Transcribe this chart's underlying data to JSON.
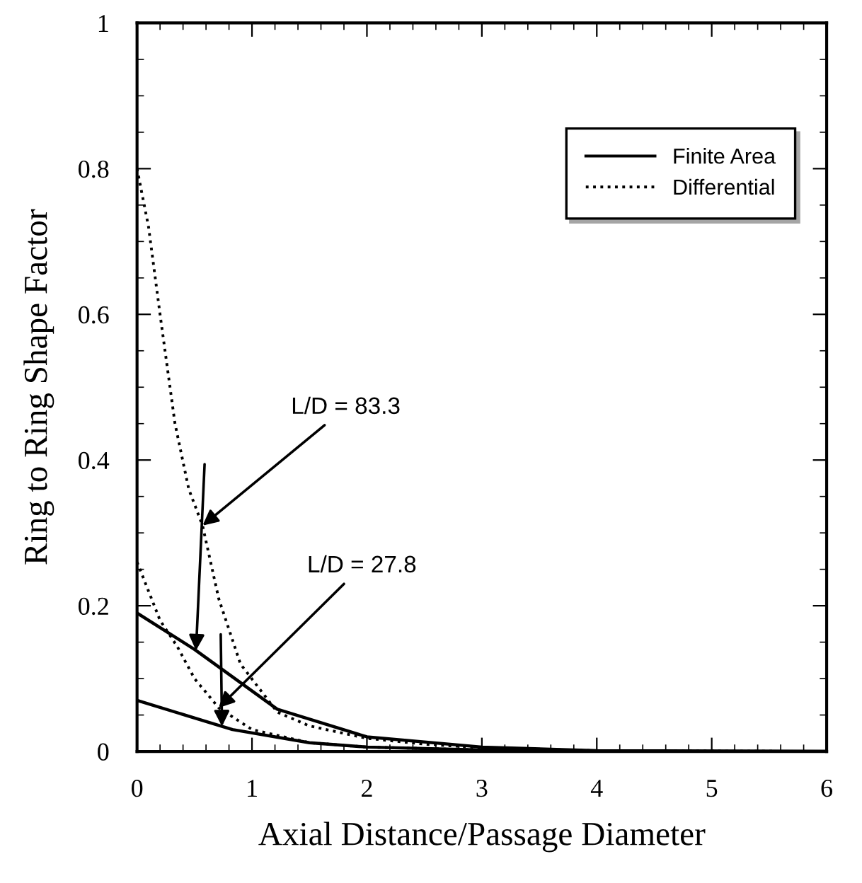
{
  "chart_data": {
    "type": "line",
    "xlabel": "Axial Distance/Passage Diameter",
    "ylabel": "Ring to Ring Shape Factor",
    "xlim": [
      0,
      6
    ],
    "xticks": [
      0,
      1,
      2,
      3,
      4,
      5,
      6
    ],
    "ylim": [
      0,
      1
    ],
    "yticks": [
      0,
      0.2,
      0.4,
      0.6,
      0.8,
      1
    ],
    "legend": "top right",
    "grid": false,
    "marker": "none",
    "series": [
      {
        "name": "Finite Area",
        "color": "#000000",
        "line_style": "solid",
        "x": [
          0,
          0.5,
          1.22,
          2,
          3,
          4,
          6
        ],
        "values": [
          0.19,
          0.14,
          0.058,
          0.02,
          0.006,
          0.001,
          0
        ]
      },
      {
        "color": "#000000",
        "line_style": "solid",
        "x": [
          0,
          0.83,
          1.5,
          2,
          3,
          4,
          6
        ],
        "values": [
          0.07,
          0.03,
          0.012,
          0.006,
          0.002,
          0,
          0
        ]
      },
      {
        "name": "Differential",
        "color": "#000000",
        "line_style": "dotted",
        "x": [
          0,
          0.1,
          0.2,
          0.33,
          0.45,
          0.57,
          0.71,
          0.9,
          1.22,
          1.5,
          2,
          2.5,
          3,
          4,
          6
        ],
        "values": [
          0.8,
          0.72,
          0.6,
          0.45,
          0.36,
          0.31,
          0.21,
          0.12,
          0.054,
          0.035,
          0.018,
          0.01,
          0.005,
          0.001,
          0
        ]
      },
      {
        "color": "#000000",
        "line_style": "dotted",
        "x": [
          0,
          0.1,
          0.2,
          0.35,
          0.5,
          0.71,
          1,
          1.5,
          2,
          3,
          4,
          6
        ],
        "values": [
          0.26,
          0.22,
          0.18,
          0.144,
          0.1,
          0.06,
          0.03,
          0.012,
          0.006,
          0.002,
          0,
          0
        ]
      }
    ],
    "annotations": [
      {
        "text": "L/D = 83.3",
        "x": 0.57,
        "y": 0.31
      },
      {
        "text": "L/D = 27.8",
        "x": 0.71,
        "y": 0.06
      }
    ]
  }
}
